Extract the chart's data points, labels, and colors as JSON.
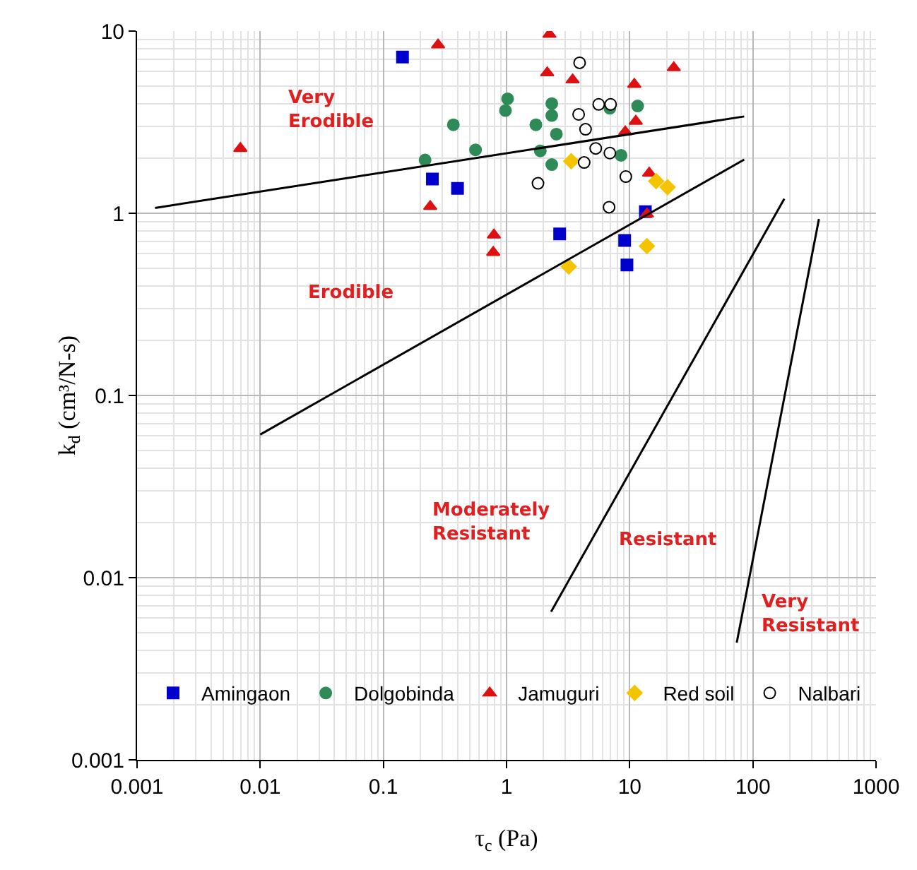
{
  "chart_data": {
    "type": "scatter",
    "xlabel": "τ$_{c}$ (Pa)",
    "ylabel": "k$_{d}$ (cm³/N-s)",
    "log": "xy",
    "grid": true,
    "legend": "bottom",
    "xlim": [
      0.001,
      1000
    ],
    "xticks": [
      0.001,
      0.01,
      0.1,
      1,
      10,
      100,
      1000
    ],
    "ylim": [
      0.001,
      10
    ],
    "yticks": [
      0.001,
      0.01,
      0.1,
      1,
      10
    ],
    "series": [
      {
        "name": "Amingaon",
        "color": "#0000cc",
        "marker": "square",
        "x": [
          0.143,
          0.25,
          0.4,
          2.7,
          9.1,
          9.5,
          13.4
        ],
        "values": [
          7.2,
          1.54,
          1.37,
          0.77,
          0.71,
          0.52,
          1.02
        ]
      },
      {
        "name": "Dolgobinda",
        "color": "#2e8b57",
        "marker": "circle",
        "x": [
          1.02,
          0.98,
          0.37,
          0.56,
          0.218,
          1.73,
          2.33,
          2.33,
          2.54,
          1.88,
          2.33,
          6.9,
          11.6,
          8.5
        ],
        "values": [
          4.25,
          3.66,
          3.06,
          2.23,
          1.96,
          3.06,
          4.0,
          3.44,
          2.72,
          2.2,
          1.85,
          3.77,
          3.88,
          2.08
        ]
      },
      {
        "name": "Jamuguri",
        "color": "#dd1111",
        "marker": "triangle",
        "x": [
          0.278,
          0.0069,
          0.24,
          0.79,
          0.78,
          2.23,
          2.14,
          3.44,
          22.8,
          10.9,
          11.2,
          9.2,
          14.4,
          13.8
        ],
        "values": [
          8.4,
          2.27,
          1.09,
          0.76,
          0.61,
          9.6,
          5.9,
          5.4,
          6.3,
          5.1,
          3.2,
          2.8,
          1.66,
          0.99
        ]
      },
      {
        "name": "Red soil",
        "color": "#f5c400",
        "marker": "diamond",
        "x": [
          3.35,
          16.4,
          20.3,
          13.8,
          3.2
        ],
        "values": [
          1.93,
          1.5,
          1.39,
          0.66,
          0.51
        ]
      },
      {
        "name": "Nalbari",
        "color": "#ffffff",
        "marker": "circle",
        "x": [
          3.92,
          5.6,
          7.0,
          3.85,
          4.38,
          5.3,
          6.9,
          4.27,
          1.8,
          9.3,
          6.8
        ],
        "values": [
          6.7,
          3.96,
          3.96,
          3.49,
          2.89,
          2.27,
          2.14,
          1.9,
          1.46,
          1.59,
          1.08
        ]
      },
      {
        "type": "line",
        "color": "#000000",
        "x": [
          0.0014,
          85
        ],
        "values": [
          1.07,
          3.4
        ]
      },
      {
        "type": "line",
        "color": "#000000",
        "x": [
          0.01,
          85
        ],
        "values": [
          0.061,
          1.97
        ]
      },
      {
        "type": "line",
        "color": "#000000",
        "x": [
          2.3,
          180
        ],
        "values": [
          0.0065,
          1.2
        ]
      },
      {
        "type": "line",
        "color": "#000000",
        "x": [
          74,
          344
        ],
        "values": [
          0.0044,
          0.93
        ]
      }
    ],
    "annotations": [
      "Very\nErodible",
      "Erodible",
      "Moderately\nResistant",
      "Resistant",
      "Very\nResistant"
    ]
  }
}
